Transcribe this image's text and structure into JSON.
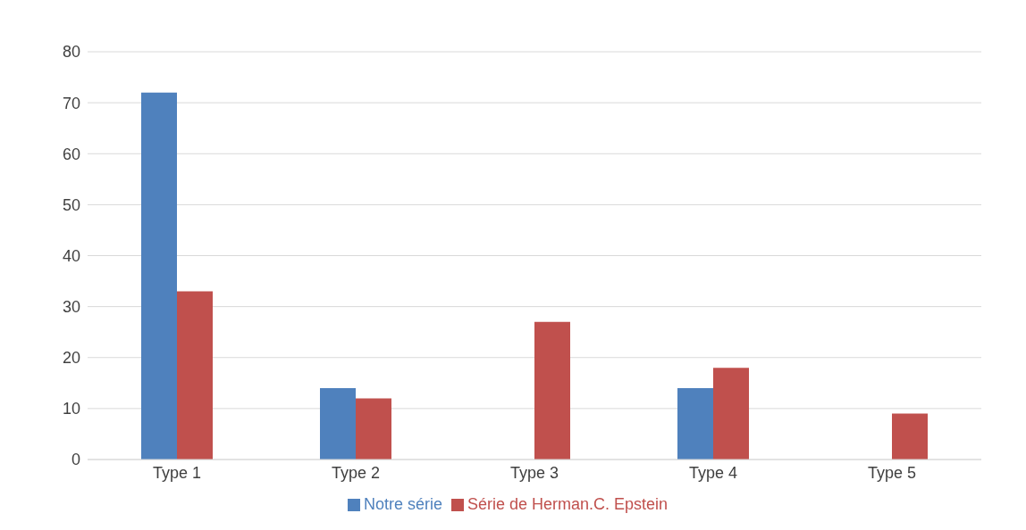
{
  "chart_data": {
    "type": "bar",
    "categories": [
      "Type 1",
      "Type 2",
      "Type 3",
      "Type 4",
      "Type 5"
    ],
    "series": [
      {
        "name": "Notre série",
        "color": "#4f81bd",
        "values": [
          72,
          14,
          0,
          14,
          0
        ]
      },
      {
        "name": "Série de Herman.C. Epstein",
        "color": "#c0504d",
        "values": [
          33,
          12,
          27,
          18,
          9
        ]
      }
    ],
    "ylim": [
      0,
      80
    ],
    "yticks": [
      0,
      10,
      20,
      30,
      40,
      50,
      60,
      70,
      80
    ],
    "grid": "y",
    "legend": "bottom"
  }
}
